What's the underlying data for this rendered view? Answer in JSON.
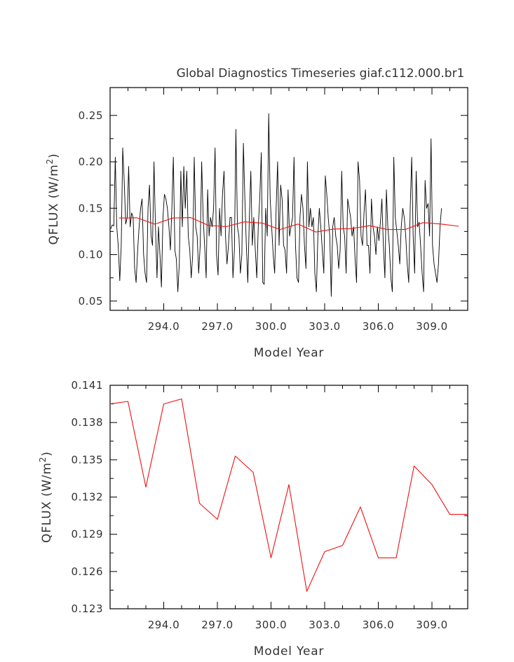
{
  "chart_data": [
    {
      "type": "line",
      "title": "Global Diagnostics Timeseries giaf.c112.000.br1",
      "xlabel": "Model Year",
      "ylabel": "QFLUX (W/m^2)",
      "ylabel_main": "QFLUX (W/m",
      "ylabel_sup": "2",
      "ylabel_close": ")",
      "xlim": [
        291.0,
        311.0
      ],
      "ylim": [
        0.04,
        0.28
      ],
      "xticks": [
        294.0,
        297.0,
        300.0,
        303.0,
        306.0,
        309.0
      ],
      "xtick_labels": [
        "294.0",
        "297.0",
        "300.0",
        "303.0",
        "306.0",
        "309.0"
      ],
      "yticks": [
        0.05,
        0.1,
        0.15,
        0.2,
        0.25
      ],
      "ytick_labels": [
        "0.05",
        "0.10",
        "0.15",
        "0.20",
        "0.25"
      ],
      "grid": false,
      "series": [
        {
          "color": "#000000",
          "x0": 291.04,
          "dx": 0.0833,
          "values": [
            0.128,
            0.132,
            0.131,
            0.205,
            0.13,
            0.11,
            0.072,
            0.11,
            0.215,
            0.18,
            0.133,
            0.14,
            0.195,
            0.13,
            0.145,
            0.14,
            0.085,
            0.07,
            0.105,
            0.13,
            0.15,
            0.16,
            0.1,
            0.08,
            0.07,
            0.15,
            0.175,
            0.12,
            0.11,
            0.2,
            0.13,
            0.075,
            0.13,
            0.1,
            0.065,
            0.14,
            0.165,
            0.16,
            0.15,
            0.13,
            0.105,
            0.15,
            0.205,
            0.105,
            0.095,
            0.06,
            0.09,
            0.19,
            0.13,
            0.195,
            0.15,
            0.19,
            0.12,
            0.105,
            0.075,
            0.1,
            0.205,
            0.13,
            0.12,
            0.08,
            0.11,
            0.2,
            0.14,
            0.11,
            0.075,
            0.17,
            0.12,
            0.14,
            0.13,
            0.15,
            0.215,
            0.1,
            0.078,
            0.15,
            0.12,
            0.165,
            0.19,
            0.12,
            0.09,
            0.11,
            0.14,
            0.14,
            0.075,
            0.105,
            0.235,
            0.13,
            0.12,
            0.08,
            0.1,
            0.22,
            0.16,
            0.11,
            0.07,
            0.14,
            0.19,
            0.11,
            0.14,
            0.105,
            0.075,
            0.13,
            0.16,
            0.21,
            0.07,
            0.068,
            0.15,
            0.12,
            0.252,
            0.16,
            0.13,
            0.1,
            0.08,
            0.15,
            0.2,
            0.11,
            0.175,
            0.16,
            0.11,
            0.105,
            0.08,
            0.17,
            0.12,
            0.13,
            0.14,
            0.205,
            0.11,
            0.075,
            0.07,
            0.14,
            0.165,
            0.15,
            0.11,
            0.085,
            0.2,
            0.13,
            0.15,
            0.13,
            0.14,
            0.08,
            0.06,
            0.12,
            0.15,
            0.13,
            0.105,
            0.08,
            0.185,
            0.165,
            0.14,
            0.12,
            0.055,
            0.13,
            0.14,
            0.12,
            0.11,
            0.085,
            0.105,
            0.19,
            0.13,
            0.12,
            0.08,
            0.16,
            0.15,
            0.14,
            0.12,
            0.13,
            0.095,
            0.07,
            0.2,
            0.18,
            0.12,
            0.11,
            0.145,
            0.17,
            0.11,
            0.11,
            0.08,
            0.16,
            0.13,
            0.12,
            0.1,
            0.13,
            0.115,
            0.135,
            0.16,
            0.11,
            0.075,
            0.17,
            0.13,
            0.11,
            0.075,
            0.06,
            0.205,
            0.14,
            0.125,
            0.11,
            0.09,
            0.13,
            0.15,
            0.14,
            0.12,
            0.09,
            0.07,
            0.15,
            0.205,
            0.12,
            0.08,
            0.19,
            0.13,
            0.135,
            0.11,
            0.08,
            0.06,
            0.18,
            0.15,
            0.155,
            0.12,
            0.225,
            0.11,
            0.09,
            0.08,
            0.07,
            0.09,
            0.13,
            0.15
          ]
        },
        {
          "color": "#ee1111",
          "x": [
            291.5,
            292.5,
            293.5,
            294.5,
            295.5,
            296.5,
            297.5,
            298.5,
            299.5,
            300.5,
            301.5,
            302.5,
            303.5,
            304.5,
            305.5,
            306.5,
            307.5,
            308.5,
            309.5,
            310.5
          ],
          "values": [
            0.1395,
            0.1397,
            0.1328,
            0.1395,
            0.1399,
            0.1315,
            0.1302,
            0.1353,
            0.134,
            0.1271,
            0.133,
            0.1244,
            0.1276,
            0.1281,
            0.1312,
            0.1271,
            0.1271,
            0.1345,
            0.133,
            0.1306
          ]
        }
      ]
    },
    {
      "type": "line",
      "title": "",
      "xlabel": "Model Year",
      "ylabel": "QFLUX (W/m^2)",
      "ylabel_main": "QFLUX (W/m",
      "ylabel_sup": "2",
      "ylabel_close": ")",
      "xlim": [
        291.0,
        311.0
      ],
      "ylim": [
        0.123,
        0.141
      ],
      "xticks": [
        294.0,
        297.0,
        300.0,
        303.0,
        306.0,
        309.0
      ],
      "xtick_labels": [
        "294.0",
        "297.0",
        "300.0",
        "303.0",
        "306.0",
        "309.0"
      ],
      "yticks": [
        0.123,
        0.126,
        0.129,
        0.132,
        0.135,
        0.138,
        0.141
      ],
      "ytick_labels": [
        "0.123",
        "0.126",
        "0.129",
        "0.132",
        "0.135",
        "0.138",
        "0.141"
      ],
      "grid": false,
      "series": [
        {
          "color": "#ee1111",
          "x": [
            291.0,
            292.0,
            293.0,
            294.0,
            295.0,
            296.0,
            297.0,
            298.0,
            299.0,
            300.0,
            301.0,
            302.0,
            303.0,
            304.0,
            305.0,
            306.0,
            307.0,
            308.0,
            309.0,
            310.0,
            311.0
          ],
          "values": [
            0.1395,
            0.1397,
            0.1328,
            0.1395,
            0.1399,
            0.1315,
            0.1302,
            0.1353,
            0.134,
            0.1271,
            0.133,
            0.1244,
            0.1276,
            0.1281,
            0.1312,
            0.1271,
            0.1271,
            0.1345,
            0.133,
            0.1306,
            0.1306
          ]
        }
      ]
    }
  ]
}
